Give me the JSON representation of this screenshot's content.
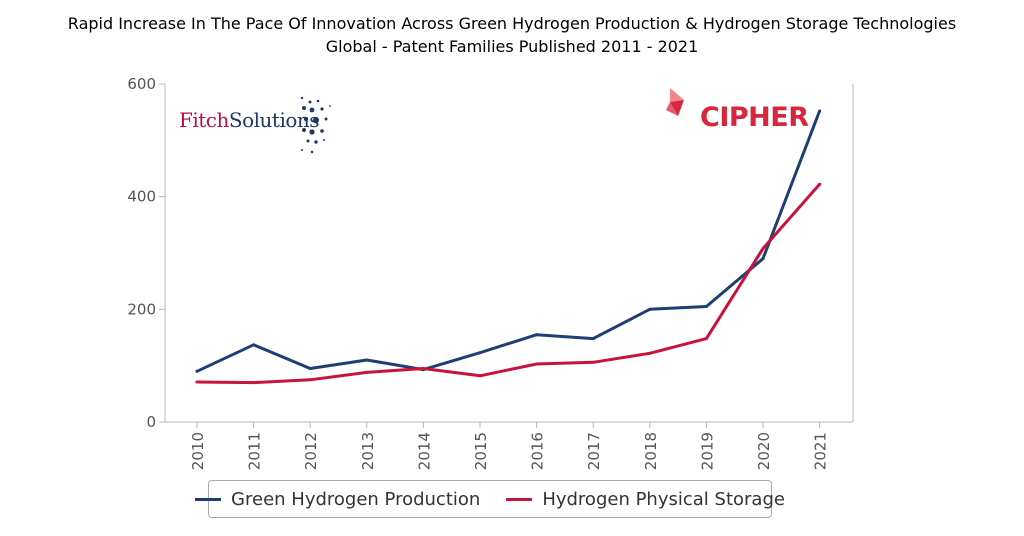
{
  "header": {
    "title": "Rapid Increase In The Pace Of Innovation Across Green Hydrogen Production & Hydrogen Storage Technologies",
    "subtitle": "Global - Patent Families Published 2011 - 2021"
  },
  "logos": {
    "fitch_a": "Fitch",
    "fitch_b": "Solutions",
    "cipher": "CIPHER"
  },
  "colors": {
    "green_production": "#1f3f73",
    "physical_storage": "#c8143c",
    "axis": "#b9b9b9",
    "tick_text": "#555555"
  },
  "chart_data": {
    "type": "line",
    "title": "Rapid Increase In The Pace Of Innovation Across Green Hydrogen Production & Hydrogen Storage Technologies",
    "subtitle": "Global - Patent Families Published 2011 - 2021",
    "xlabel": "",
    "ylabel": "",
    "x": [
      "2010",
      "2011",
      "2012",
      "2013",
      "2014",
      "2015",
      "2016",
      "2017",
      "2018",
      "2019",
      "2020",
      "2021"
    ],
    "ylim": [
      0,
      600
    ],
    "yticks": [
      0,
      200,
      400,
      600
    ],
    "grid": false,
    "legend_position": "bottom",
    "series": [
      {
        "name": "Green Hydrogen Production",
        "values": [
          90,
          137,
          95,
          110,
          93,
          123,
          155,
          148,
          200,
          205,
          290,
          552
        ]
      },
      {
        "name": "Hydrogen Physical Storage",
        "values": [
          71,
          70,
          75,
          88,
          95,
          82,
          103,
          106,
          122,
          148,
          308,
          422
        ]
      }
    ]
  }
}
